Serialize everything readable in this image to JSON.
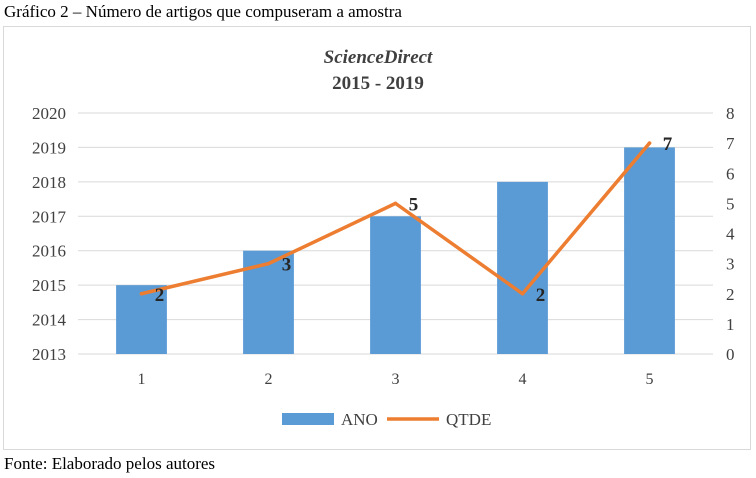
{
  "caption": "Gráfico 2 – Número de artigos que compuseram a amostra",
  "source": "Fonte: Elaborado pelos autores",
  "chart_data": {
    "type": "bar",
    "title": "ScienceDirect",
    "subtitle": "2015 - 2019",
    "categories": [
      "1",
      "2",
      "3",
      "4",
      "5"
    ],
    "series": [
      {
        "name": "ANO",
        "type": "bar",
        "axis": "left",
        "color": "#5b9bd5",
        "values": [
          2015,
          2016,
          2017,
          2018,
          2019
        ]
      },
      {
        "name": "QTDE",
        "type": "line",
        "axis": "right",
        "color": "#ed7d31",
        "values": [
          2,
          3,
          5,
          2,
          7
        ],
        "data_labels": true
      }
    ],
    "y_left": {
      "min": 2013,
      "max": 2020,
      "step": 1
    },
    "y_right": {
      "min": 0,
      "max": 8,
      "step": 1
    },
    "grid": true,
    "legend": "bottom"
  }
}
